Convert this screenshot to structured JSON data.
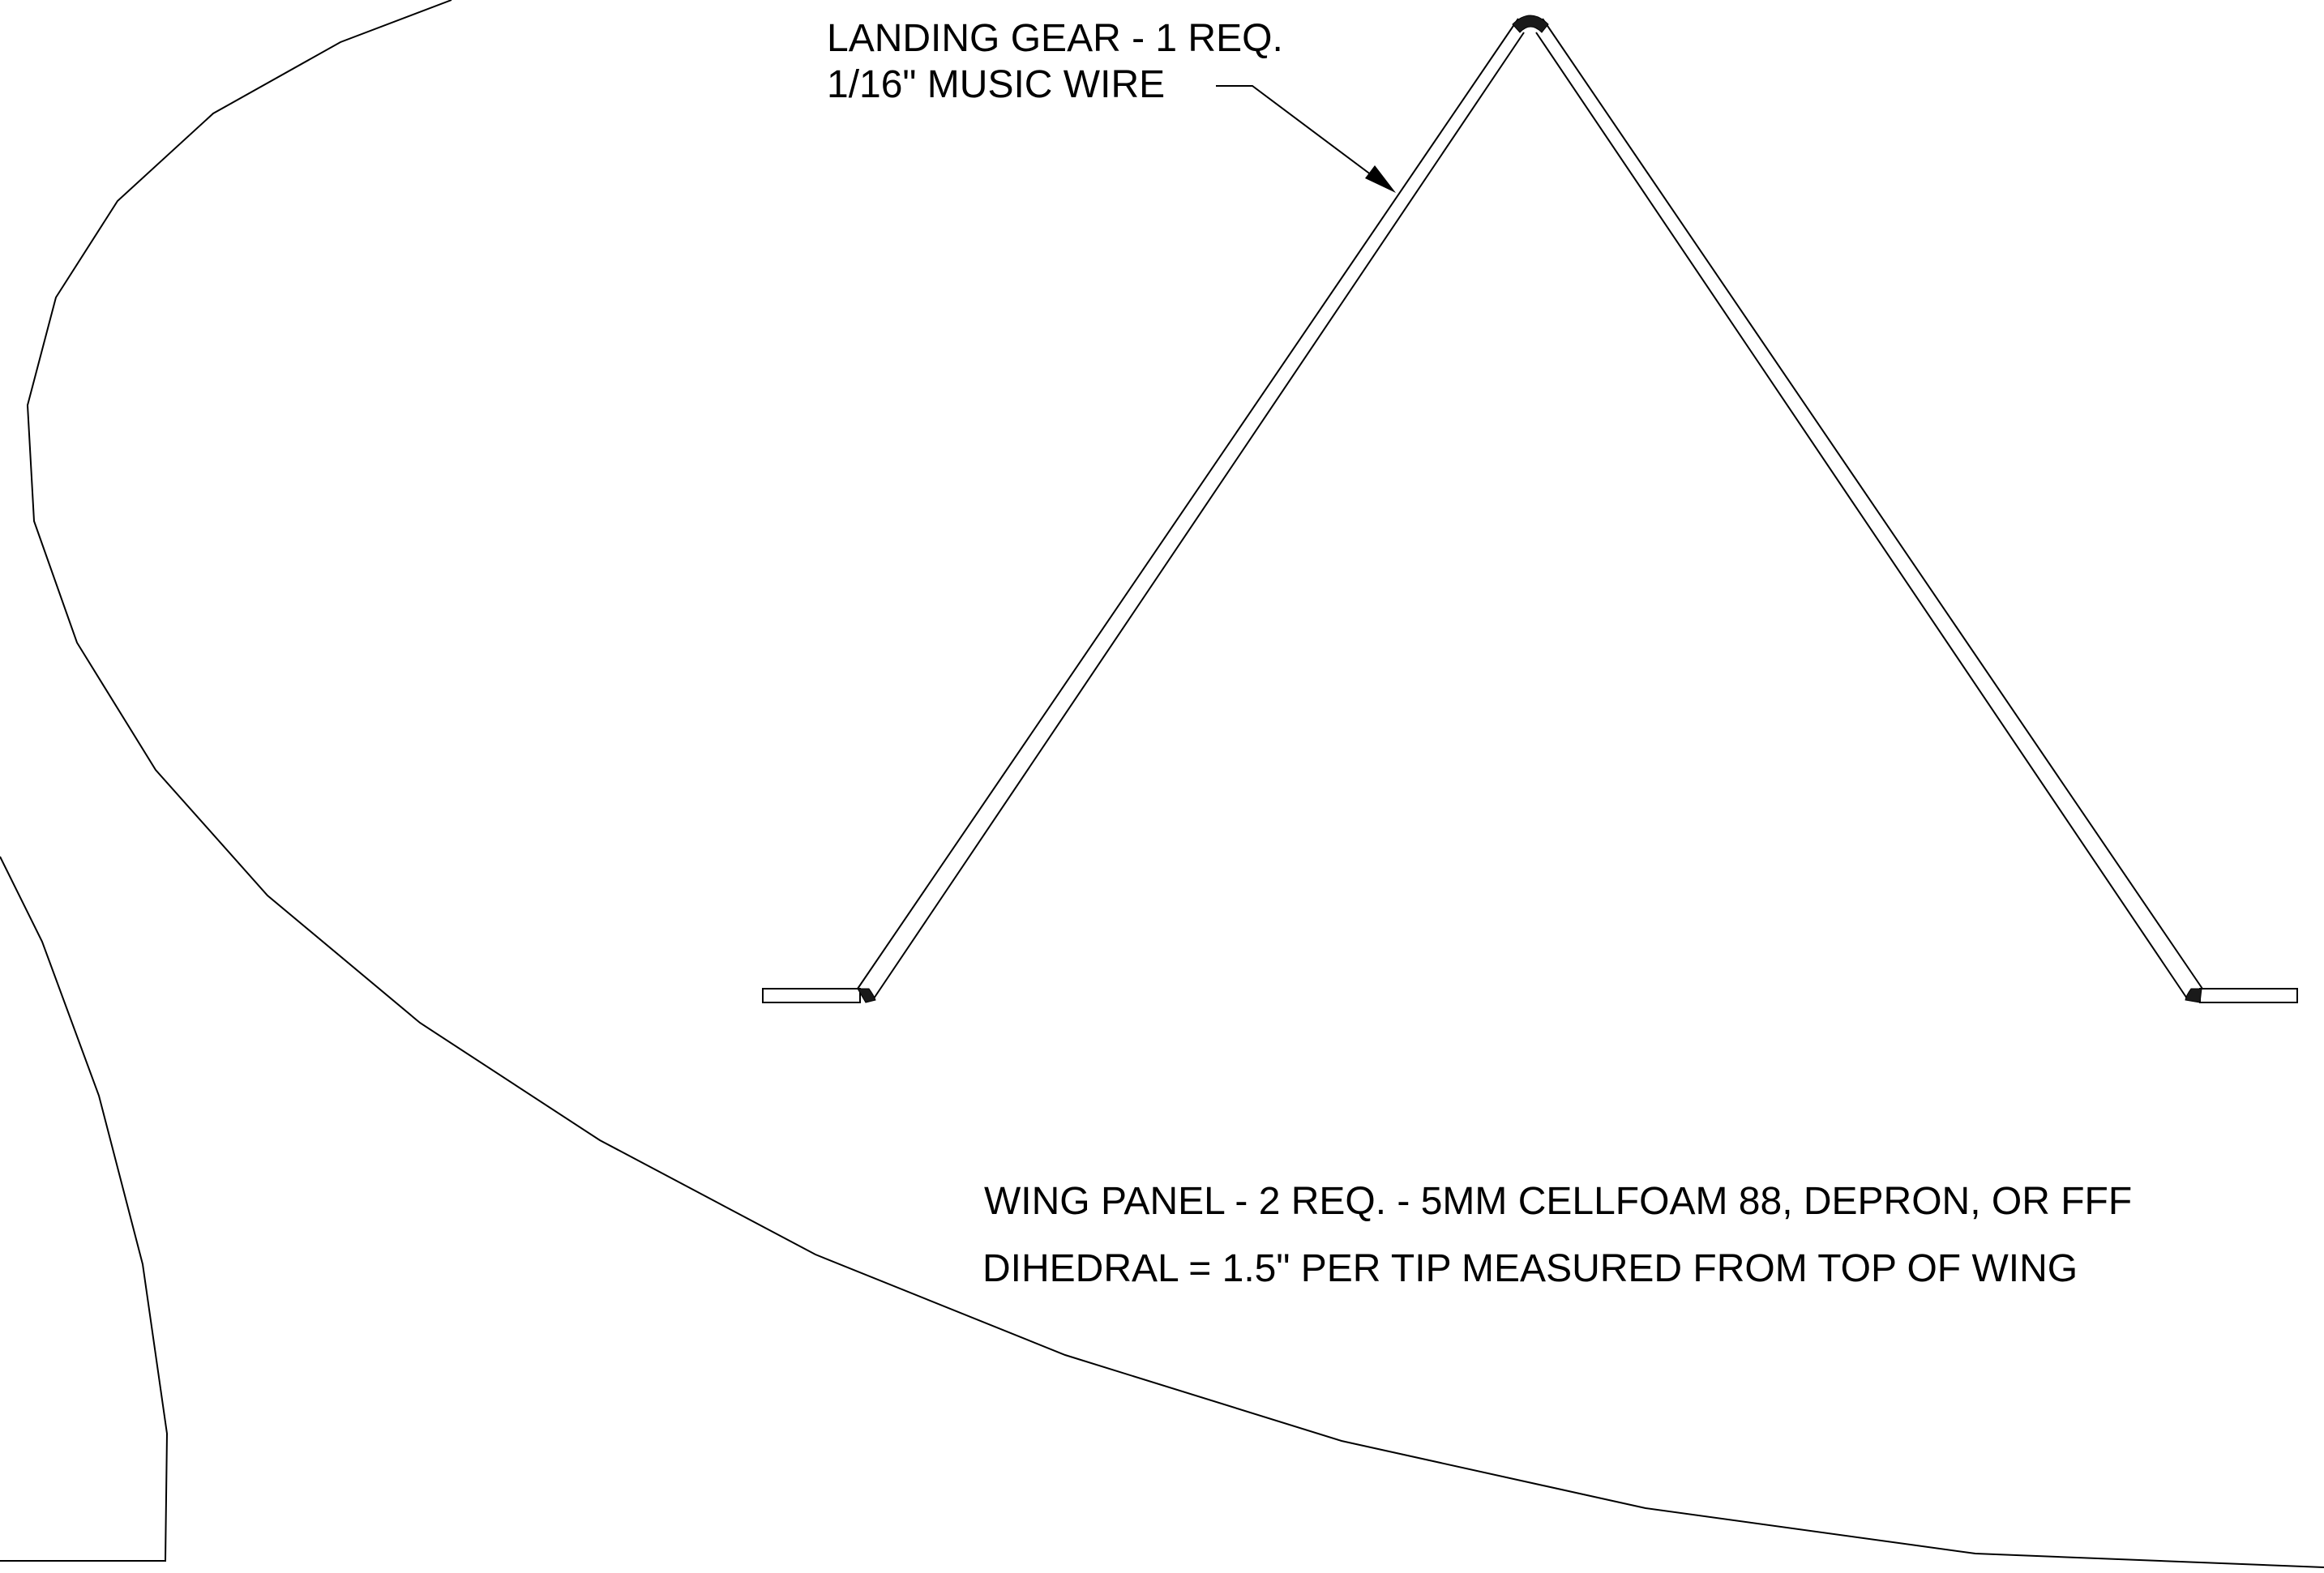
{
  "landing_gear": {
    "label_line1": "LANDING GEAR - 1 REQ.",
    "label_line2": "1/16\" MUSIC WIRE"
  },
  "wing_panel": {
    "note_line1": "WING PANEL - 2 REQ. - 5MM CELLFOAM 88, DEPRON, OR FFF",
    "note_line2": "DIHEDRAL = 1.5\" PER TIP MEASURED FROM TOP OF WING"
  },
  "colors": {
    "line": "#000000",
    "background": "#ffffff"
  }
}
